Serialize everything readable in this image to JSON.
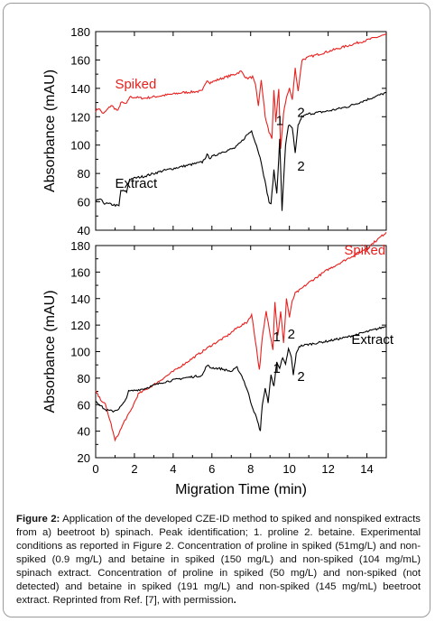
{
  "figure": {
    "caption_label": "Figure 2:",
    "caption_text": " Application of the developed CZE-ID method to spiked and nonspiked extracts from a) beetroot b) spinach. Peak identification; 1. proline 2. betaine. Experimental conditions as reported in Figure 2. Concentration of proline in spiked (51mg/L) and non-spiked (0.9 mg/L) and betaine in spiked (150 mg/L) and non-spiked (104 mg/mL) spinach extract.  Concentration of proline in spiked (50 mg/L) and non-spiked (not detected) and betaine in spiked (191 mg/L) and non-spiked (145 mg/mL) beetroot extract. Reprinted from Ref. [7], with permission",
    "caption_end": "."
  },
  "colors": {
    "spiked": "#e8201e",
    "extract": "#000000"
  },
  "chart_data": [
    {
      "type": "line",
      "panel": "top",
      "xlabel": "",
      "ylabel": "Absorbance (mAU)",
      "xlim": [
        0,
        15
      ],
      "ylim": [
        40,
        180
      ],
      "yticks": [
        "40",
        "60",
        "80",
        "100",
        "120",
        "140",
        "160",
        "180"
      ],
      "grid": false,
      "series": [
        {
          "name": "Spiked",
          "x": [
            0,
            0.15,
            0.4,
            0.8,
            1.15,
            1.3,
            1.6,
            1.75,
            2.5,
            3.5,
            4.5,
            5.5,
            5.75,
            5.9,
            6.5,
            7.2,
            7.5,
            7.8,
            8.1,
            8.25,
            8.4,
            8.55,
            8.75,
            8.95,
            9.1,
            9.2,
            9.3,
            9.45,
            9.55,
            9.7,
            9.85,
            10.0,
            10.15,
            10.3,
            10.45,
            10.65,
            11,
            12,
            13,
            14,
            15
          ],
          "values": [
            124,
            126,
            122,
            128,
            124,
            130,
            129,
            134,
            133,
            135,
            137,
            138,
            146,
            144,
            147,
            150,
            152,
            147,
            148,
            142,
            128,
            146,
            120,
            109,
            105,
            138,
            116,
            140,
            98,
            122,
            134,
            140,
            132,
            154,
            138,
            160,
            162,
            166,
            170,
            174,
            178
          ]
        },
        {
          "name": "Extract",
          "x": [
            0,
            0.2,
            0.45,
            0.9,
            1.2,
            1.3,
            1.6,
            1.75,
            2.5,
            3.5,
            4.5,
            5.5,
            5.75,
            5.9,
            6.5,
            7.2,
            7.5,
            7.8,
            8.05,
            8.3,
            8.55,
            8.8,
            8.95,
            9.05,
            9.2,
            9.35,
            9.5,
            9.62,
            9.8,
            9.95,
            10.15,
            10.3,
            10.45,
            10.65,
            11,
            12,
            13,
            14,
            15
          ],
          "values": [
            60,
            62,
            59,
            58,
            57,
            68,
            67,
            76,
            78,
            82,
            85,
            88,
            93,
            91,
            95,
            98,
            102,
            107,
            110,
            100,
            88,
            70,
            60,
            58,
            82,
            66,
            104,
            54,
            100,
            114,
            112,
            94,
            114,
            120,
            122,
            124,
            127,
            132,
            137
          ]
        }
      ],
      "annotations": [
        {
          "text": "Spiked",
          "series": "Spiked"
        },
        {
          "text": "Extract",
          "series": "Extract"
        },
        {
          "text": "1",
          "x": 9.5,
          "y": 114
        },
        {
          "text": "2",
          "x": 10.6,
          "y": 120
        },
        {
          "text": "2",
          "x": 10.6,
          "y": 82
        }
      ]
    },
    {
      "type": "line",
      "panel": "bottom",
      "xlabel": "Migration Time (min)",
      "ylabel": "Absorbance (mAU)",
      "xlim": [
        0,
        15
      ],
      "ylim": [
        20,
        180
      ],
      "xticks": [
        "0",
        "2",
        "4",
        "6",
        "8",
        "10",
        "12",
        "14"
      ],
      "yticks": [
        "20",
        "40",
        "60",
        "80",
        "100",
        "120",
        "140",
        "160",
        "180"
      ],
      "grid": false,
      "series": [
        {
          "name": "Spiked",
          "x": [
            0,
            0.2,
            0.5,
            0.8,
            1.0,
            1.25,
            1.5,
            1.8,
            2.2,
            3,
            4,
            5,
            6,
            6.8,
            7.3,
            7.8,
            8.05,
            8.25,
            8.45,
            8.6,
            8.8,
            8.95,
            9.15,
            9.25,
            9.4,
            9.55,
            9.7,
            9.85,
            10.0,
            10.15,
            10.3,
            10.5,
            11,
            12,
            13,
            14,
            15
          ],
          "values": [
            70,
            65,
            60,
            45,
            33,
            40,
            48,
            55,
            68,
            75,
            85,
            95,
            105,
            112,
            118,
            122,
            128,
            108,
            86,
            110,
            130,
            118,
            102,
            138,
            112,
            130,
            106,
            140,
            126,
            138,
            144,
            146,
            152,
            162,
            170,
            178,
            190
          ]
        },
        {
          "name": "Extract",
          "x": [
            0,
            0.2,
            0.5,
            0.9,
            1.2,
            1.5,
            1.7,
            2.5,
            3.5,
            4.5,
            5.5,
            5.75,
            5.9,
            6.5,
            7.0,
            7.3,
            7.6,
            7.85,
            8.05,
            8.3,
            8.5,
            8.6,
            8.75,
            8.9,
            9.05,
            9.2,
            9.35,
            9.5,
            9.65,
            9.8,
            9.95,
            10.1,
            10.2,
            10.35,
            10.5,
            10.8,
            12,
            13,
            14,
            15
          ],
          "values": [
            63,
            60,
            56,
            55,
            57,
            62,
            70,
            72,
            77,
            80,
            82,
            90,
            88,
            87,
            85,
            88,
            80,
            70,
            60,
            50,
            40,
            60,
            72,
            62,
            82,
            74,
            92,
            88,
            95,
            90,
            102,
            96,
            82,
            98,
            104,
            105,
            108,
            111,
            115,
            119
          ]
        }
      ],
      "annotations": [
        {
          "text": "Spiked",
          "series": "Spiked"
        },
        {
          "text": "Extract",
          "series": "Extract"
        },
        {
          "text": "1",
          "x": 9.35,
          "y": 108
        },
        {
          "text": "2",
          "x": 10.1,
          "y": 110
        },
        {
          "text": "1",
          "x": 9.35,
          "y": 84
        },
        {
          "text": "2",
          "x": 10.6,
          "y": 78
        }
      ]
    }
  ]
}
